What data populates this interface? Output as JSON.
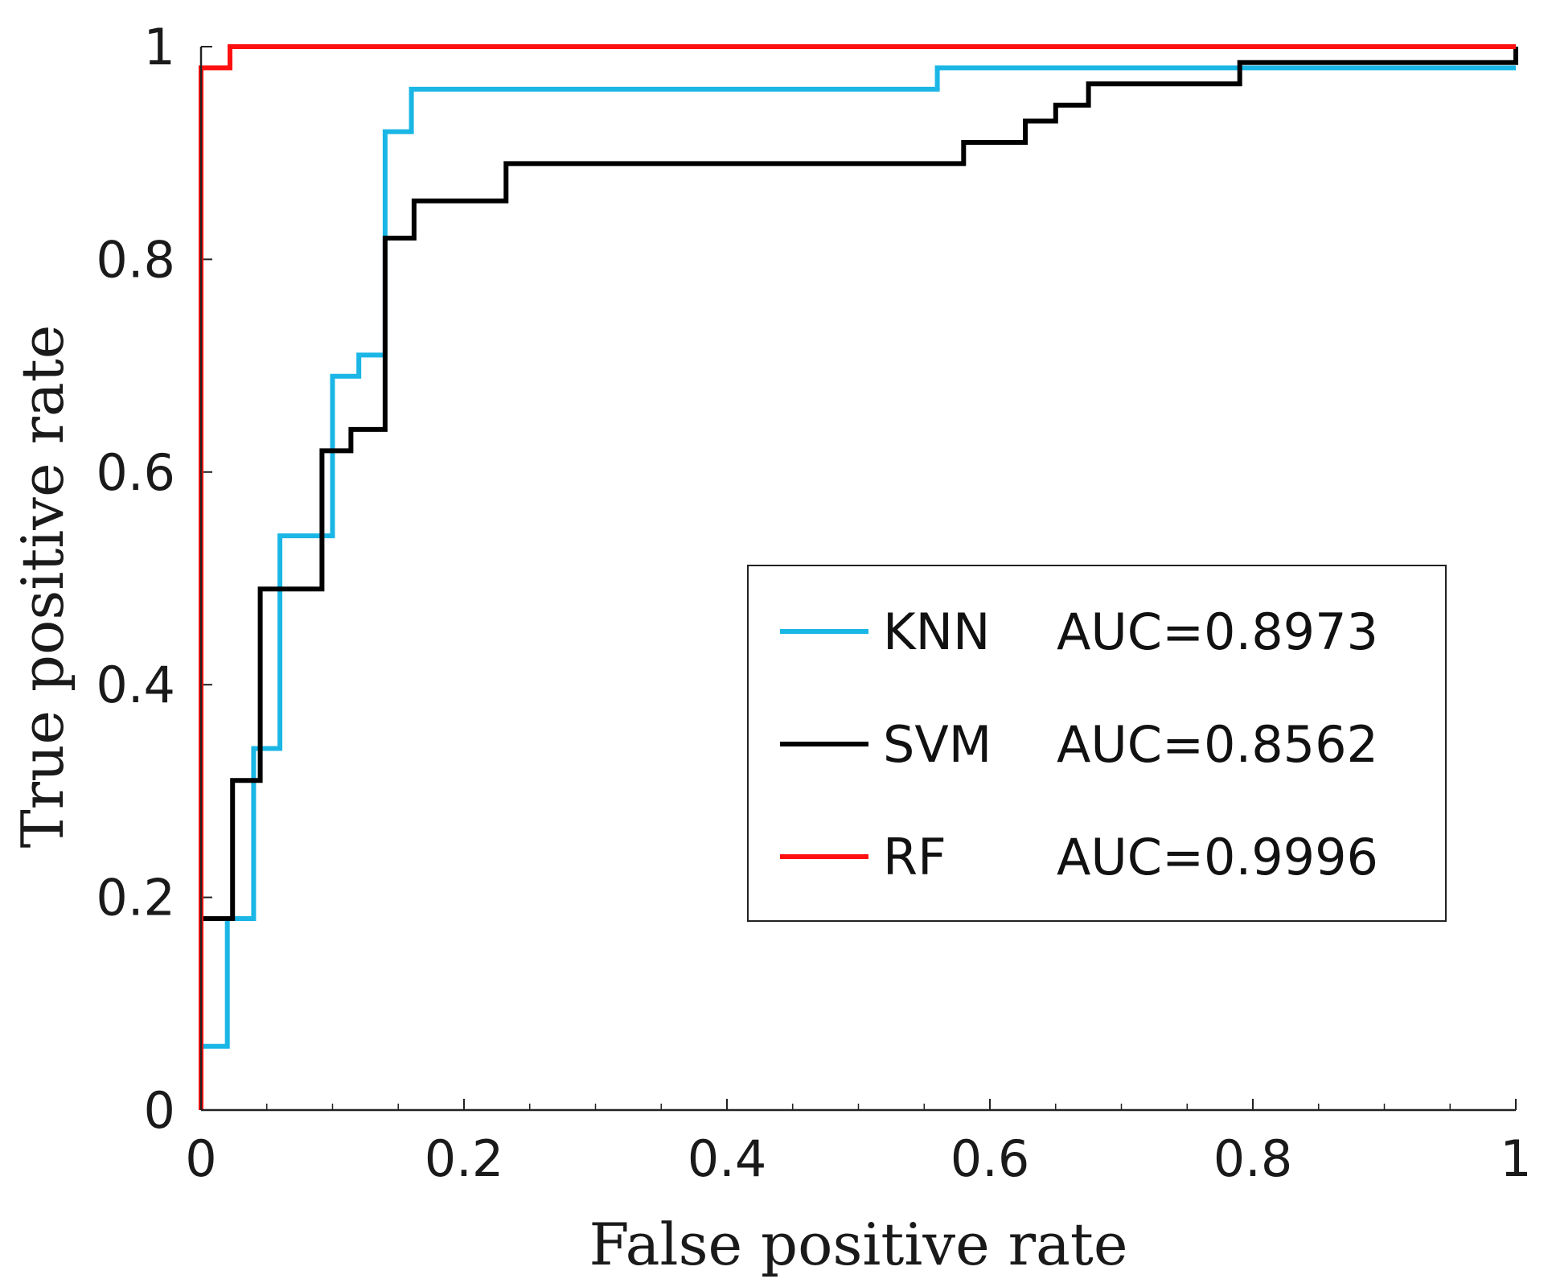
{
  "chart_data": {
    "type": "line",
    "title": "",
    "xlabel": "False positive rate",
    "ylabel": "True positive rate",
    "xlim": [
      0,
      1
    ],
    "ylim": [
      0,
      1
    ],
    "xticks": [
      0,
      0.2,
      0.4,
      0.6,
      0.8,
      1
    ],
    "yticks": [
      0,
      0.2,
      0.4,
      0.6,
      0.8,
      1
    ],
    "xtick_labels": [
      "0",
      "0.2",
      "0.4",
      "0.6",
      "0.8",
      "1"
    ],
    "ytick_labels": [
      "0",
      "0.2",
      "0.4",
      "0.6",
      "0.8",
      "1"
    ],
    "minor_ticks_x": [
      0.05,
      0.1,
      0.15,
      0.25,
      0.3,
      0.35,
      0.45,
      0.5,
      0.55,
      0.65,
      0.7,
      0.75,
      0.85,
      0.9,
      0.95
    ],
    "grid": false,
    "legend_position": "center-right",
    "series": [
      {
        "name": "KNN",
        "label": "KNN",
        "auc_label": "AUC=0.8973",
        "color": "#1ab6e6",
        "x": [
          0,
          0.02,
          0.02,
          0.04,
          0.04,
          0.06,
          0.06,
          0.1,
          0.1,
          0.12,
          0.12,
          0.14,
          0.14,
          0.16,
          0.16,
          0.56,
          0.56,
          0.8,
          0.8,
          1
        ],
        "y": [
          0.06,
          0.06,
          0.18,
          0.18,
          0.34,
          0.34,
          0.54,
          0.54,
          0.69,
          0.69,
          0.71,
          0.71,
          0.92,
          0.92,
          0.96,
          0.96,
          0.98,
          0.98,
          0.98,
          0.98
        ]
      },
      {
        "name": "SVM",
        "label": "SVM",
        "auc_label": "AUC=0.8562",
        "color": "#000000",
        "x": [
          0,
          0.024,
          0.024,
          0.045,
          0.045,
          0.092,
          0.092,
          0.114,
          0.114,
          0.14,
          0.14,
          0.162,
          0.162,
          0.232,
          0.232,
          0.58,
          0.58,
          0.627,
          0.627,
          0.65,
          0.65,
          0.675,
          0.675,
          0.79,
          0.79,
          1,
          1
        ],
        "y": [
          0.18,
          0.18,
          0.31,
          0.31,
          0.49,
          0.49,
          0.62,
          0.62,
          0.64,
          0.64,
          0.82,
          0.82,
          0.855,
          0.855,
          0.89,
          0.89,
          0.91,
          0.91,
          0.93,
          0.93,
          0.945,
          0.945,
          0.965,
          0.965,
          0.985,
          0.985,
          1.0
        ]
      },
      {
        "name": "RF",
        "label": "RF",
        "auc_label": "AUC=0.9996",
        "color": "#ff1010",
        "x": [
          0,
          0,
          0.022,
          0.022,
          1
        ],
        "y": [
          0,
          0.98,
          0.98,
          1.0,
          1.0
        ]
      }
    ]
  }
}
